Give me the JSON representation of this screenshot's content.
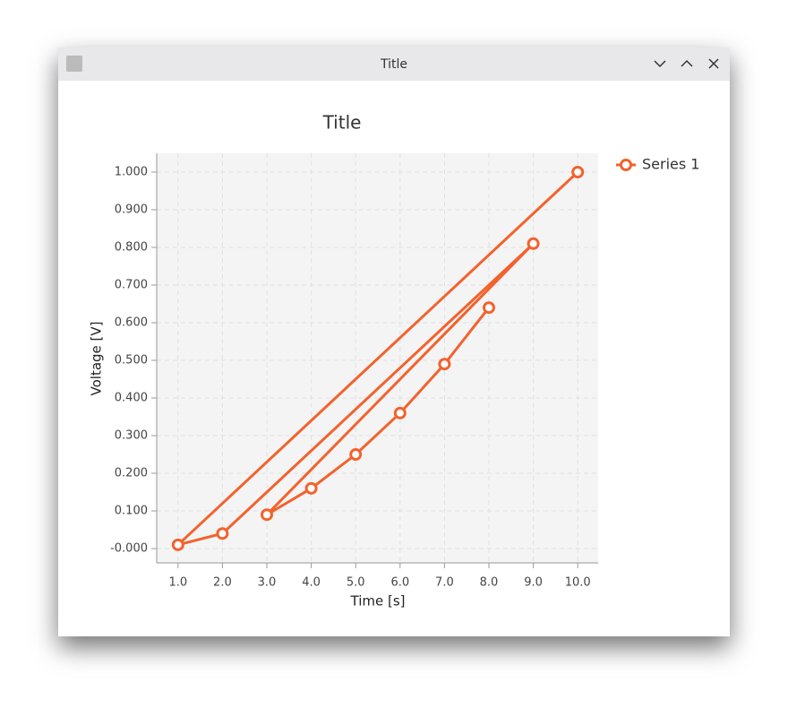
{
  "window": {
    "title": "Title"
  },
  "chart_data": {
    "type": "line",
    "title": "Title",
    "x_label": "Time  [s]",
    "y_label": "Voltage  [V]",
    "series": [
      {
        "name": "Series 1",
        "color": "#f3622d",
        "x": [
          10,
          1,
          2,
          9,
          3,
          4,
          5,
          6,
          7,
          8
        ],
        "values": [
          1.0,
          0.01,
          0.04,
          0.81,
          0.09,
          0.16,
          0.25,
          0.36,
          0.49,
          0.64
        ]
      }
    ],
    "xlim": [
      0.52,
      10.46
    ],
    "ylim": [
      -0.038,
      1.05
    ],
    "xticks": [
      {
        "value": 1,
        "label": "1.0"
      },
      {
        "value": 2,
        "label": "2.0"
      },
      {
        "value": 3,
        "label": "3.0"
      },
      {
        "value": 4,
        "label": "4.0"
      },
      {
        "value": 5,
        "label": "5.0"
      },
      {
        "value": 6,
        "label": "6.0"
      },
      {
        "value": 7,
        "label": "7.0"
      },
      {
        "value": 8,
        "label": "8.0"
      },
      {
        "value": 9,
        "label": "9.0"
      },
      {
        "value": 10,
        "label": "10.0"
      }
    ],
    "yticks": [
      {
        "value": 0,
        "label": "-0.000"
      },
      {
        "value": 0.1,
        "label": "0.100"
      },
      {
        "value": 0.2,
        "label": "0.200"
      },
      {
        "value": 0.3,
        "label": "0.300"
      },
      {
        "value": 0.4,
        "label": "0.400"
      },
      {
        "value": 0.5,
        "label": "0.500"
      },
      {
        "value": 0.6,
        "label": "0.600"
      },
      {
        "value": 0.7,
        "label": "0.700"
      },
      {
        "value": 0.8,
        "label": "0.800"
      },
      {
        "value": 0.9,
        "label": "0.900"
      },
      {
        "value": 1.0,
        "label": "1.000"
      }
    ],
    "grid": true,
    "legend": "right"
  }
}
